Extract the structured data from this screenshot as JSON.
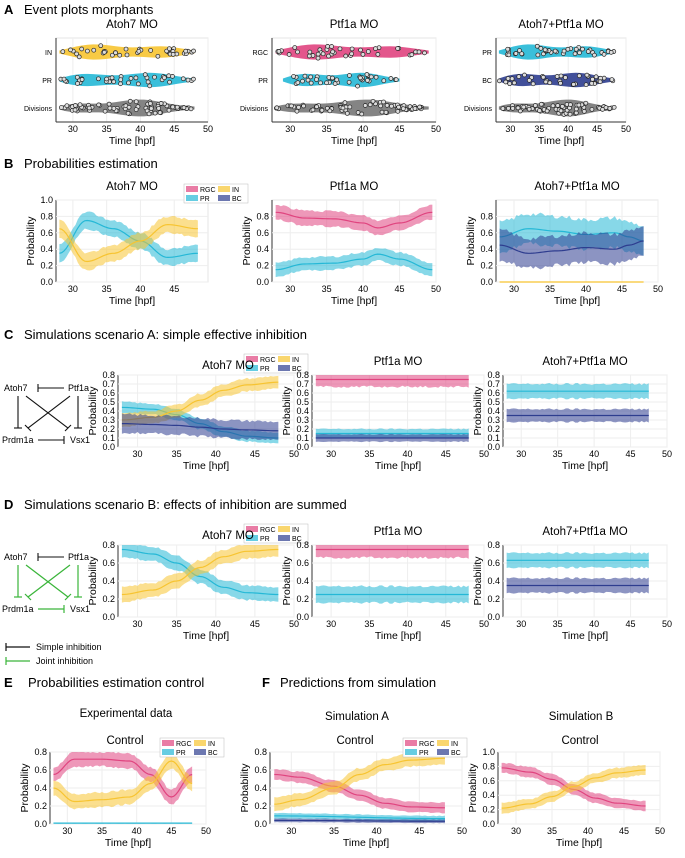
{
  "colors": {
    "RGC": "#e0447f",
    "IN": "#f7c431",
    "PR": "#25b8d6",
    "BC": "#2e3d8f",
    "Div": "#777777",
    "black": "#111111",
    "green": "#3ab53a"
  },
  "labels": {
    "A": {
      "letter": "A",
      "title": "Event plots morphants"
    },
    "B": {
      "letter": "B",
      "title": "Probabilities estimation"
    },
    "C": {
      "letter": "C",
      "title": "Simulations scenario A: simple effective inhibition"
    },
    "D": {
      "letter": "D",
      "title": "Simulations scenario B: effects of inhibition are summed"
    },
    "E": {
      "letter": "E",
      "title": "Probabilities estimation control",
      "sub": "Experimental data"
    },
    "F": {
      "letter": "F",
      "title": "Predictions from simulation",
      "subA": "Simulation A",
      "subB": "Simulation B"
    }
  },
  "text": {
    "time": "Time [hpf]",
    "prob": "Probability",
    "atoh7": "Atoh7 MO",
    "ptf1a": "Ptf1a MO",
    "both": "Atoh7+Ptf1a MO",
    "control": "Control",
    "leg": [
      "RGC",
      "IN",
      "PR",
      "BC"
    ],
    "inhib_simple": "Simple inhibition",
    "inhib_joint": "Joint inhibition",
    "nodes": [
      "Atoh7",
      "Ptf1a",
      "Prdm1a",
      "Vsx1"
    ]
  },
  "chart_data": [
    {
      "id": "A1",
      "type": "scatter",
      "title": "Atoh7 MO",
      "xlabel": "Time [hpf]",
      "xlim": [
        27.5,
        50
      ],
      "xticks": [
        30,
        35,
        40,
        45,
        50
      ],
      "categories": [
        "IN",
        "PR",
        "Divisions"
      ],
      "ranges": [
        [
          28,
          48
        ],
        [
          28,
          48
        ],
        [
          28,
          48
        ]
      ]
    },
    {
      "id": "A2",
      "type": "scatter",
      "title": "Ptf1a MO",
      "xlabel": "Time [hpf]",
      "xlim": [
        27.5,
        50
      ],
      "xticks": [
        30,
        35,
        40,
        45,
        50
      ],
      "categories": [
        "RGC",
        "PR",
        "Divisions"
      ],
      "ranges": [
        [
          28,
          49
        ],
        [
          29,
          45
        ],
        [
          28,
          49
        ]
      ]
    },
    {
      "id": "A3",
      "type": "scatter",
      "title": "Atoh7+Ptf1a MO",
      "xlabel": "Time [hpf]",
      "xlim": [
        27.5,
        50
      ],
      "xticks": [
        30,
        35,
        40,
        45,
        50
      ],
      "categories": [
        "PR",
        "BC",
        "Divisions"
      ],
      "ranges": [
        [
          28,
          48
        ],
        [
          28,
          48
        ],
        [
          28,
          48
        ]
      ]
    },
    {
      "id": "B1",
      "type": "line",
      "title": "Atoh7 MO",
      "xlabel": "Time [hpf]",
      "ylabel": "Probability",
      "xlim": [
        27.5,
        50
      ],
      "ylim": [
        0,
        1
      ],
      "xticks": [
        30,
        35,
        40,
        45
      ],
      "yticks": [
        0,
        0.2,
        0.4,
        0.6,
        0.8,
        1
      ],
      "series": [
        {
          "name": "PR",
          "x": [
            28,
            32,
            36,
            40,
            44,
            48.5
          ],
          "y": [
            0.35,
            0.75,
            0.65,
            0.5,
            0.3,
            0.35
          ],
          "band": 0.1
        },
        {
          "name": "IN",
          "x": [
            28,
            32,
            36,
            40,
            44,
            48.5
          ],
          "y": [
            0.65,
            0.25,
            0.35,
            0.5,
            0.7,
            0.65
          ],
          "band": 0.1
        }
      ]
    },
    {
      "id": "B2",
      "type": "line",
      "title": "Ptf1a MO",
      "xlabel": "Time [hpf]",
      "ylabel": "Probability",
      "xlim": [
        27.5,
        50
      ],
      "ylim": [
        0,
        1
      ],
      "xticks": [
        30,
        35,
        40,
        45,
        50
      ],
      "yticks": [
        0,
        0.2,
        0.4,
        0.6,
        0.8
      ],
      "series": [
        {
          "name": "RGC",
          "x": [
            28,
            32,
            36,
            40,
            42,
            45,
            49.5
          ],
          "y": [
            0.85,
            0.78,
            0.77,
            0.72,
            0.66,
            0.72,
            0.85
          ],
          "band": 0.09
        },
        {
          "name": "PR",
          "x": [
            28,
            32,
            36,
            40,
            42,
            45,
            49.5
          ],
          "y": [
            0.15,
            0.22,
            0.23,
            0.28,
            0.34,
            0.28,
            0.15
          ],
          "band": 0.08
        }
      ]
    },
    {
      "id": "B3",
      "type": "line",
      "title": "Atoh7+Ptf1a MO",
      "xlabel": "Time [hpf]",
      "ylabel": "Probability",
      "xlim": [
        27.5,
        50
      ],
      "ylim": [
        0,
        1
      ],
      "xticks": [
        30,
        35,
        40,
        45,
        50
      ],
      "yticks": [
        0,
        0.2,
        0.4,
        0.6,
        0.8
      ],
      "series": [
        {
          "name": "PR",
          "x": [
            28,
            32,
            36,
            40,
            44,
            46,
            48
          ],
          "y": [
            0.55,
            0.65,
            0.62,
            0.58,
            0.6,
            0.55,
            0.5
          ],
          "band": 0.18
        },
        {
          "name": "BC",
          "x": [
            28,
            32,
            36,
            40,
            44,
            46,
            48
          ],
          "y": [
            0.45,
            0.35,
            0.38,
            0.42,
            0.4,
            0.45,
            0.5
          ],
          "band": 0.18
        },
        {
          "name": "IN",
          "x": [
            28,
            48
          ],
          "y": [
            0,
            0
          ],
          "band": 0.005
        }
      ]
    },
    {
      "id": "C1",
      "type": "line",
      "title": "Atoh7 MO",
      "xlabel": "Time [hpf]",
      "ylabel": "Probability",
      "xlim": [
        27.5,
        50
      ],
      "ylim": [
        0,
        0.8
      ],
      "xticks": [
        30,
        35,
        40,
        45,
        50
      ],
      "yticks": [
        0,
        0.1,
        0.2,
        0.3,
        0.4,
        0.5,
        0.6,
        0.7,
        0.8
      ],
      "series": [
        {
          "name": "PR",
          "x": [
            28,
            32,
            35,
            38,
            41,
            44,
            48
          ],
          "y": [
            0.44,
            0.42,
            0.36,
            0.26,
            0.17,
            0.12,
            0.1
          ],
          "band": 0.06
        },
        {
          "name": "IN",
          "x": [
            28,
            32,
            35,
            38,
            41,
            44,
            48
          ],
          "y": [
            0.3,
            0.33,
            0.4,
            0.52,
            0.63,
            0.69,
            0.72
          ],
          "band": 0.07
        },
        {
          "name": "BC",
          "x": [
            28,
            32,
            35,
            38,
            41,
            44,
            48
          ],
          "y": [
            0.26,
            0.25,
            0.24,
            0.22,
            0.2,
            0.19,
            0.18
          ],
          "band": 0.1
        }
      ]
    },
    {
      "id": "C2",
      "type": "line",
      "title": "Ptf1a MO",
      "xlabel": "Time [hpf]",
      "ylabel": "Probability",
      "xlim": [
        27.5,
        50
      ],
      "ylim": [
        0,
        0.8
      ],
      "xticks": [
        30,
        35,
        40,
        45,
        50
      ],
      "yticks": [
        0,
        0.1,
        0.2,
        0.3,
        0.4,
        0.5,
        0.6,
        0.7,
        0.8
      ],
      "series": [
        {
          "name": "RGC",
          "x": [
            28,
            48
          ],
          "y": [
            0.75,
            0.75
          ],
          "band": 0.08
        },
        {
          "name": "PR",
          "x": [
            28,
            48
          ],
          "y": [
            0.15,
            0.15
          ],
          "band": 0.05
        },
        {
          "name": "BC",
          "x": [
            28,
            48
          ],
          "y": [
            0.1,
            0.1
          ],
          "band": 0.04
        }
      ]
    },
    {
      "id": "C3",
      "type": "line",
      "title": "Atoh7+Ptf1a MO",
      "xlabel": "Time [hpf]",
      "ylabel": "Probability",
      "xlim": [
        27.5,
        50
      ],
      "ylim": [
        0,
        0.8
      ],
      "xticks": [
        30,
        35,
        40,
        45,
        50
      ],
      "yticks": [
        0,
        0.1,
        0.2,
        0.3,
        0.4,
        0.5,
        0.6,
        0.7,
        0.8
      ],
      "series": [
        {
          "name": "PR",
          "x": [
            28,
            47.5
          ],
          "y": [
            0.62,
            0.62
          ],
          "band": 0.08
        },
        {
          "name": "BC",
          "x": [
            28,
            47.5
          ],
          "y": [
            0.35,
            0.35
          ],
          "band": 0.07
        }
      ]
    },
    {
      "id": "D1",
      "type": "line",
      "title": "Atoh7 MO",
      "xlabel": "Time [hpf]",
      "ylabel": "Probability",
      "xlim": [
        27.5,
        50
      ],
      "ylim": [
        0,
        0.8
      ],
      "xticks": [
        30,
        35,
        40,
        45,
        50
      ],
      "yticks": [
        0,
        0.2,
        0.4,
        0.6,
        0.8
      ],
      "series": [
        {
          "name": "PR",
          "x": [
            28,
            32,
            35,
            38,
            41,
            44,
            48
          ],
          "y": [
            0.75,
            0.7,
            0.6,
            0.45,
            0.33,
            0.27,
            0.25
          ],
          "band": 0.08
        },
        {
          "name": "IN",
          "x": [
            28,
            32,
            35,
            38,
            41,
            44,
            48
          ],
          "y": [
            0.25,
            0.3,
            0.4,
            0.55,
            0.67,
            0.73,
            0.75
          ],
          "band": 0.08
        }
      ]
    },
    {
      "id": "D2",
      "type": "line",
      "title": "Ptf1a MO",
      "xlabel": "Time [hpf]",
      "ylabel": "Probability",
      "xlim": [
        27.5,
        50
      ],
      "ylim": [
        0,
        0.8
      ],
      "xticks": [
        30,
        35,
        40,
        45,
        50
      ],
      "yticks": [
        0,
        0.2,
        0.4,
        0.6,
        0.8
      ],
      "series": [
        {
          "name": "RGC",
          "x": [
            28,
            48
          ],
          "y": [
            0.75,
            0.75
          ],
          "band": 0.09
        },
        {
          "name": "PR",
          "x": [
            28,
            48
          ],
          "y": [
            0.25,
            0.25
          ],
          "band": 0.09
        }
      ]
    },
    {
      "id": "D3",
      "type": "line",
      "title": "Atoh7+Ptf1a MO",
      "xlabel": "Time [hpf]",
      "ylabel": "Probability",
      "xlim": [
        27.5,
        50
      ],
      "ylim": [
        0,
        0.8
      ],
      "xticks": [
        30,
        35,
        40,
        45,
        50
      ],
      "yticks": [
        0,
        0.2,
        0.4,
        0.6,
        0.8
      ],
      "series": [
        {
          "name": "PR",
          "x": [
            28,
            47.5
          ],
          "y": [
            0.63,
            0.63
          ],
          "band": 0.08
        },
        {
          "name": "BC",
          "x": [
            28,
            47.5
          ],
          "y": [
            0.35,
            0.35
          ],
          "band": 0.08
        }
      ]
    },
    {
      "id": "E",
      "type": "line",
      "title": "Control",
      "xlabel": "Time [hpf]",
      "ylabel": "Probability",
      "xlim": [
        27.5,
        50
      ],
      "ylim": [
        0,
        0.8
      ],
      "xticks": [
        30,
        35,
        40,
        45,
        50
      ],
      "yticks": [
        0,
        0.2,
        0.4,
        0.6,
        0.8
      ],
      "series": [
        {
          "name": "RGC",
          "x": [
            28,
            31,
            35,
            39,
            42,
            45,
            48
          ],
          "y": [
            0.55,
            0.72,
            0.72,
            0.7,
            0.55,
            0.3,
            0.55
          ],
          "band": 0.08
        },
        {
          "name": "IN",
          "x": [
            28,
            31,
            35,
            39,
            42,
            45,
            48
          ],
          "y": [
            0.4,
            0.25,
            0.27,
            0.3,
            0.45,
            0.7,
            0.45
          ],
          "band": 0.08
        },
        {
          "name": "PR",
          "x": [
            28,
            48
          ],
          "y": [
            0.01,
            0.01
          ],
          "band": 0.005
        }
      ]
    },
    {
      "id": "F1",
      "type": "line",
      "title": "Control",
      "xlabel": "Time [hpf]",
      "ylabel": "Probability",
      "xlim": [
        27.5,
        50
      ],
      "ylim": [
        0,
        0.8
      ],
      "xticks": [
        30,
        35,
        40,
        45,
        50
      ],
      "yticks": [
        0,
        0.2,
        0.4,
        0.6,
        0.8
      ],
      "series": [
        {
          "name": "RGC",
          "x": [
            28,
            31,
            35,
            38,
            41,
            44,
            48
          ],
          "y": [
            0.55,
            0.52,
            0.42,
            0.32,
            0.23,
            0.19,
            0.18
          ],
          "band": 0.06
        },
        {
          "name": "IN",
          "x": [
            28,
            31,
            35,
            38,
            41,
            44,
            48
          ],
          "y": [
            0.22,
            0.27,
            0.4,
            0.55,
            0.66,
            0.71,
            0.73
          ],
          "band": 0.07
        },
        {
          "name": "PR",
          "x": [
            28,
            48
          ],
          "y": [
            0.09,
            0.06
          ],
          "band": 0.03
        },
        {
          "name": "BC",
          "x": [
            28,
            48
          ],
          "y": [
            0.04,
            0.03
          ],
          "band": 0.02
        }
      ]
    },
    {
      "id": "F2",
      "type": "line",
      "title": "Control",
      "xlabel": "Time [hpf]",
      "ylabel": "Probability",
      "xlim": [
        27.5,
        50
      ],
      "ylim": [
        0,
        1
      ],
      "xticks": [
        30,
        35,
        40,
        45,
        50
      ],
      "yticks": [
        0,
        0.2,
        0.4,
        0.6,
        0.8,
        1
      ],
      "series": [
        {
          "name": "RGC",
          "x": [
            28,
            32,
            35,
            38,
            41,
            44,
            48
          ],
          "y": [
            0.78,
            0.72,
            0.62,
            0.48,
            0.36,
            0.29,
            0.25
          ],
          "band": 0.07
        },
        {
          "name": "IN",
          "x": [
            28,
            32,
            35,
            38,
            41,
            44,
            48
          ],
          "y": [
            0.22,
            0.28,
            0.38,
            0.52,
            0.64,
            0.71,
            0.75
          ],
          "band": 0.07
        }
      ]
    }
  ]
}
